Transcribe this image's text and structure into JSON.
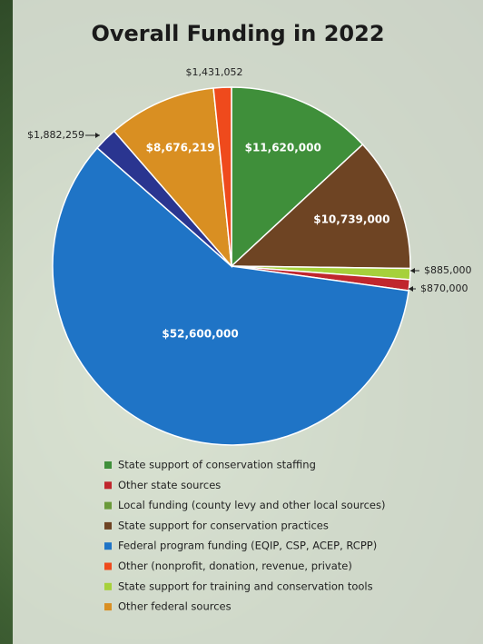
{
  "chart_data": {
    "type": "pie",
    "title": "Overall Funding in 2022",
    "slices": [
      {
        "value": 11620000,
        "value_label": "$11,620,000",
        "color": "#3f8f3a"
      },
      {
        "value": 10739000,
        "value_label": "$10,739,000",
        "color": "#6e4423"
      },
      {
        "value": 885000,
        "value_label": "$885,000",
        "color": "#a6d13b"
      },
      {
        "value": 870000,
        "value_label": "$870,000",
        "color": "#c0262d"
      },
      {
        "value": 52600000,
        "value_label": "$52,600,000",
        "color": "#1f74c6"
      },
      {
        "value": 1882259,
        "value_label": "$1,882,259",
        "color": "#2a3590"
      },
      {
        "value": 8676219,
        "value_label": "$8,676,219",
        "color": "#d98f22"
      },
      {
        "value": 1431052,
        "value_label": "$1,431,052",
        "color": "#ef4a1c"
      }
    ],
    "legend": [
      {
        "name": "State support of conservation staffing",
        "color": "#3f8f3a"
      },
      {
        "name": "Other state sources",
        "color": "#c0262d"
      },
      {
        "name": "Local funding (county levy and other local sources)",
        "color": "#6a9a3a"
      },
      {
        "name": "State support for conservation practices",
        "color": "#6e4423"
      },
      {
        "name": "Federal program funding (EQIP, CSP, ACEP, RCPP)",
        "color": "#1f74c6"
      },
      {
        "name": "Other (nonprofit, donation, revenue, private)",
        "color": "#ef4a1c"
      },
      {
        "name": "State support for training and conservation tools",
        "color": "#a6d13b"
      },
      {
        "name": "Other federal sources",
        "color": "#d98f22"
      }
    ]
  }
}
